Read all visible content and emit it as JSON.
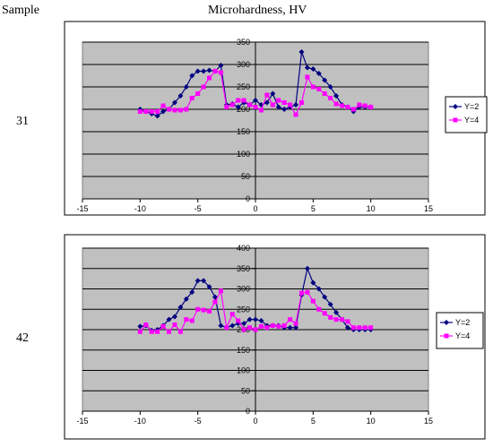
{
  "header": {
    "sample_label": "Sample",
    "title": "Microhardness, HV"
  },
  "colors": {
    "series1": "#000080",
    "series2": "#ff00ff",
    "plot_bg": "#c0c0c0",
    "grid": "#000000"
  },
  "chart_data": [
    {
      "type": "line",
      "sample": "31",
      "xlim": [
        -15,
        15
      ],
      "ylim": [
        0,
        350
      ],
      "xticks": [
        -15,
        -10,
        -5,
        0,
        5,
        10,
        15
      ],
      "yticks": [
        0,
        50,
        100,
        150,
        200,
        250,
        300,
        350
      ],
      "grid": "horizontal",
      "legend": "right",
      "series": [
        {
          "name": "Y=2",
          "marker": "diamond",
          "x": [
            -10,
            -9.5,
            -9,
            -8.5,
            -8,
            -7.5,
            -7,
            -6.5,
            -6,
            -5.5,
            -5,
            -4.5,
            -4,
            -3.5,
            -3,
            -2.5,
            -2,
            -1.5,
            -1,
            -0.5,
            0,
            0.5,
            1,
            1.5,
            2,
            2.5,
            3,
            3.5,
            4,
            4.5,
            5,
            5.5,
            6,
            6.5,
            7,
            7.5,
            8,
            8.5,
            9,
            9.5,
            10
          ],
          "y": [
            200,
            195,
            190,
            185,
            195,
            200,
            215,
            230,
            250,
            275,
            285,
            285,
            287,
            285,
            298,
            210,
            212,
            205,
            215,
            210,
            220,
            210,
            215,
            235,
            205,
            200,
            205,
            210,
            328,
            293,
            290,
            280,
            265,
            250,
            230,
            210,
            205,
            195,
            205,
            205,
            205
          ]
        },
        {
          "name": "Y=4",
          "marker": "square",
          "x": [
            -10,
            -9.5,
            -9,
            -8.5,
            -8,
            -7.5,
            -7,
            -6.5,
            -6,
            -5.5,
            -5,
            -4.5,
            -4,
            -3.5,
            -3,
            -2.5,
            -2,
            -1.5,
            -1,
            -0.5,
            0,
            0.5,
            1,
            1.5,
            2,
            2.5,
            3,
            3.5,
            4,
            4.5,
            5,
            5.5,
            6,
            6.5,
            7,
            7.5,
            8,
            8.5,
            9,
            9.5,
            10
          ],
          "y": [
            195,
            195,
            195,
            195,
            208,
            200,
            198,
            198,
            200,
            225,
            235,
            250,
            270,
            285,
            282,
            205,
            210,
            220,
            220,
            210,
            205,
            198,
            232,
            210,
            220,
            215,
            210,
            188,
            215,
            272,
            250,
            245,
            235,
            225,
            212,
            208,
            205,
            200,
            210,
            208,
            205
          ]
        }
      ]
    },
    {
      "type": "line",
      "sample": "42",
      "xlim": [
        -15,
        15
      ],
      "ylim": [
        0,
        400
      ],
      "xticks": [
        -15,
        -10,
        -5,
        0,
        5,
        10,
        15
      ],
      "yticks": [
        0,
        50,
        100,
        150,
        200,
        250,
        300,
        350,
        400
      ],
      "grid": "horizontal",
      "legend": "right",
      "series": [
        {
          "name": "Y=2",
          "marker": "diamond",
          "x": [
            -10,
            -9.5,
            -9,
            -8.5,
            -8,
            -7.5,
            -7,
            -6.5,
            -6,
            -5.5,
            -5,
            -4.5,
            -4,
            -3.5,
            -3,
            -2.5,
            -2,
            -1.5,
            -1,
            -0.5,
            0,
            0.5,
            1,
            1.5,
            2,
            2.5,
            3,
            3.5,
            4,
            4.5,
            5,
            5.5,
            6,
            6.5,
            7,
            7.5,
            8,
            8.5,
            9,
            9.5,
            10
          ],
          "y": [
            208,
            210,
            198,
            200,
            210,
            225,
            232,
            255,
            275,
            292,
            320,
            320,
            305,
            280,
            210,
            205,
            210,
            215,
            215,
            225,
            225,
            222,
            210,
            210,
            210,
            205,
            205,
            205,
            285,
            350,
            315,
            300,
            280,
            262,
            242,
            225,
            205,
            200,
            200,
            200,
            200
          ]
        },
        {
          "name": "Y=4",
          "marker": "square",
          "x": [
            -10,
            -9.5,
            -9,
            -8.5,
            -8,
            -7.5,
            -7,
            -6.5,
            -6,
            -5.5,
            -5,
            -4.5,
            -4,
            -3.5,
            -3,
            -2.5,
            -2,
            -1.5,
            -1,
            -0.5,
            0,
            0.5,
            1,
            1.5,
            2,
            2.5,
            3,
            3.5,
            4,
            4.5,
            5,
            5.5,
            6,
            6.5,
            7,
            7.5,
            8,
            8.5,
            9,
            9.5,
            10
          ],
          "y": [
            195,
            212,
            195,
            195,
            208,
            195,
            212,
            195,
            225,
            222,
            250,
            248,
            245,
            268,
            295,
            205,
            238,
            222,
            200,
            205,
            200,
            208,
            205,
            210,
            208,
            210,
            225,
            215,
            290,
            292,
            270,
            250,
            240,
            230,
            225,
            225,
            220,
            205,
            205,
            205,
            205
          ]
        }
      ]
    }
  ]
}
